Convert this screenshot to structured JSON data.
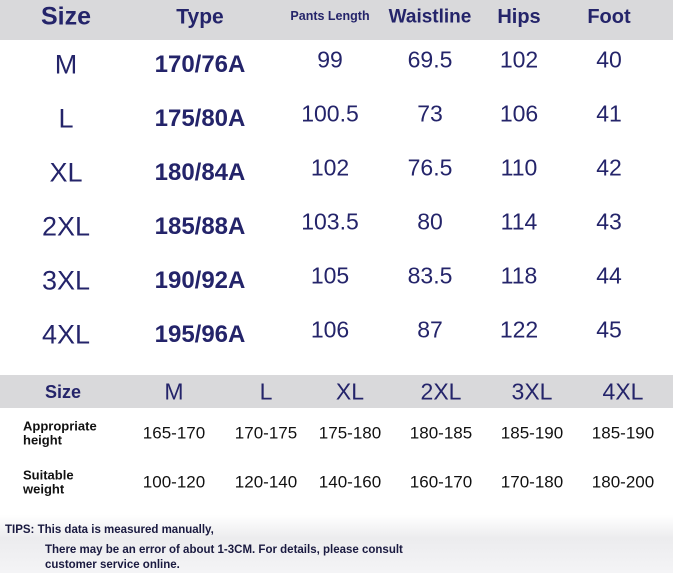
{
  "table1": {
    "header": [
      "Size",
      "Type",
      "Pants Length",
      "Waistline",
      "Hips",
      "Foot"
    ],
    "rows": [
      [
        "M",
        "170/76A",
        "99",
        "69.5",
        "102",
        "40"
      ],
      [
        "L",
        "175/80A",
        "100.5",
        "73",
        "106",
        "41"
      ],
      [
        "XL",
        "180/84A",
        "102",
        "76.5",
        "110",
        "42"
      ],
      [
        "2XL",
        "185/88A",
        "103.5",
        "80",
        "114",
        "43"
      ],
      [
        "3XL",
        "190/92A",
        "105",
        "83.5",
        "118",
        "44"
      ],
      [
        "4XL",
        "195/96A",
        "106",
        "87",
        "122",
        "45"
      ]
    ]
  },
  "table2": {
    "header": [
      "Size",
      "M",
      "L",
      "XL",
      "2XL",
      "3XL",
      "4XL"
    ],
    "rows": [
      [
        "Appropriate height",
        "165-170",
        "170-175",
        "175-180",
        "180-185",
        "185-190",
        "185-190"
      ],
      [
        "Suitable weight",
        "100-120",
        "120-140",
        "140-160",
        "160-170",
        "170-180",
        "180-200"
      ]
    ]
  },
  "tips": {
    "title": "TIPS: This data is measured manually,",
    "lines": [
      "There may be an error of about 1-3CM. For details, please consult",
      "customer service online."
    ]
  }
}
